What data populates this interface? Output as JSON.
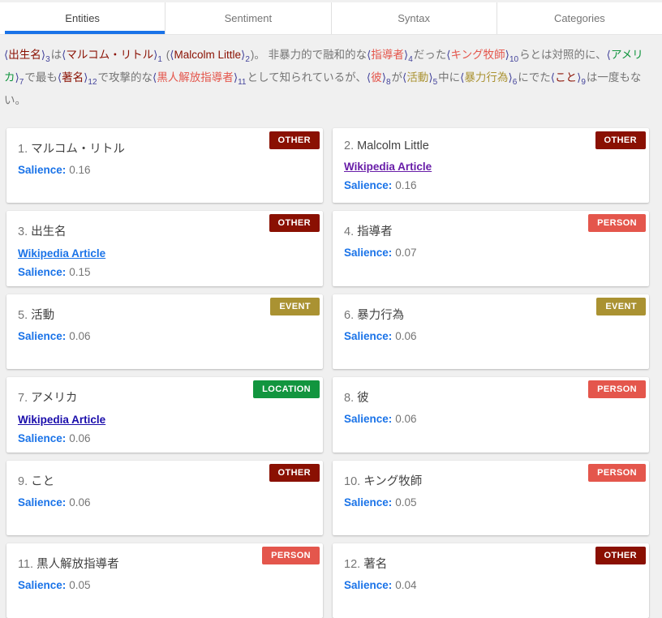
{
  "tabs": [
    {
      "label": "Entities",
      "active": true
    },
    {
      "label": "Sentiment",
      "active": false
    },
    {
      "label": "Syntax",
      "active": false
    },
    {
      "label": "Categories",
      "active": false
    }
  ],
  "colors": {
    "entity_types": {
      "OTHER": "#8a1002",
      "PERSON": "#e4564c",
      "EVENT": "#aa9232",
      "LOCATION": "#12953f"
    },
    "bracket": "#44449b",
    "active_tab_underline": "#1a73e8",
    "salience_label": "#1a73e8",
    "links": {
      "blue": "#1a73e8",
      "purple": "#681da8",
      "indigo": "#1a0dab"
    }
  },
  "annotation": {
    "bracket_open": "⟨",
    "bracket_close": "⟩",
    "segments": [
      {
        "type": "entity",
        "text": "出生名",
        "entity_type": "OTHER",
        "index": "3"
      },
      {
        "type": "plain",
        "text": "は"
      },
      {
        "type": "entity",
        "text": "マルコム・リトル",
        "entity_type": "OTHER",
        "index": "1"
      },
      {
        "type": "plain",
        "text": " ("
      },
      {
        "type": "entity",
        "text": "Malcolm Little",
        "entity_type": "OTHER",
        "index": "2"
      },
      {
        "type": "plain",
        "text": ")。 非暴力的で融和的な"
      },
      {
        "type": "entity",
        "text": "指導者",
        "entity_type": "PERSON",
        "index": "4"
      },
      {
        "type": "plain",
        "text": "だった"
      },
      {
        "type": "entity",
        "text": "キング牧師",
        "entity_type": "PERSON",
        "index": "10"
      },
      {
        "type": "plain",
        "text": "らとは対照的に、"
      },
      {
        "type": "entity",
        "text": "アメリカ",
        "entity_type": "LOCATION",
        "index": "7"
      },
      {
        "type": "plain",
        "text": "で最も"
      },
      {
        "type": "entity",
        "text": "著名",
        "entity_type": "OTHER",
        "index": "12"
      },
      {
        "type": "plain",
        "text": "で攻撃的な"
      },
      {
        "type": "entity",
        "text": "黒人解放指導者",
        "entity_type": "PERSON",
        "index": "11"
      },
      {
        "type": "plain",
        "text": "として知られているが、"
      },
      {
        "type": "entity",
        "text": "彼",
        "entity_type": "PERSON",
        "index": "8"
      },
      {
        "type": "plain",
        "text": "が"
      },
      {
        "type": "entity",
        "text": "活動",
        "entity_type": "EVENT",
        "index": "5"
      },
      {
        "type": "plain",
        "text": "中に"
      },
      {
        "type": "entity",
        "text": "暴力行為",
        "entity_type": "EVENT",
        "index": "6"
      },
      {
        "type": "plain",
        "text": "にでた"
      },
      {
        "type": "entity",
        "text": "こと",
        "entity_type": "OTHER",
        "index": "9"
      },
      {
        "type": "plain",
        "text": "は一度もない。"
      }
    ]
  },
  "salience_label": "Salience:",
  "cards": [
    {
      "number": "1.",
      "name": "マルコム・リトル",
      "type": "OTHER",
      "link": null,
      "link_style": null,
      "salience": "0.16"
    },
    {
      "number": "2.",
      "name": "Malcolm Little",
      "type": "OTHER",
      "link": "Wikipedia Article",
      "link_style": "purple",
      "salience": "0.16"
    },
    {
      "number": "3.",
      "name": "出生名",
      "type": "OTHER",
      "link": "Wikipedia Article",
      "link_style": "blue",
      "salience": "0.15"
    },
    {
      "number": "4.",
      "name": "指導者",
      "type": "PERSON",
      "link": null,
      "link_style": null,
      "salience": "0.07"
    },
    {
      "number": "5.",
      "name": "活動",
      "type": "EVENT",
      "link": null,
      "link_style": null,
      "salience": "0.06"
    },
    {
      "number": "6.",
      "name": "暴力行為",
      "type": "EVENT",
      "link": null,
      "link_style": null,
      "salience": "0.06"
    },
    {
      "number": "7.",
      "name": "アメリカ",
      "type": "LOCATION",
      "link": "Wikipedia Article",
      "link_style": "indigo",
      "salience": "0.06"
    },
    {
      "number": "8.",
      "name": "彼",
      "type": "PERSON",
      "link": null,
      "link_style": null,
      "salience": "0.06"
    },
    {
      "number": "9.",
      "name": "こと",
      "type": "OTHER",
      "link": null,
      "link_style": null,
      "salience": "0.06"
    },
    {
      "number": "10.",
      "name": "キング牧師",
      "type": "PERSON",
      "link": null,
      "link_style": null,
      "salience": "0.05"
    },
    {
      "number": "11.",
      "name": "黒人解放指導者",
      "type": "PERSON",
      "link": null,
      "link_style": null,
      "salience": "0.05"
    },
    {
      "number": "12.",
      "name": "著名",
      "type": "OTHER",
      "link": null,
      "link_style": null,
      "salience": "0.04"
    }
  ]
}
